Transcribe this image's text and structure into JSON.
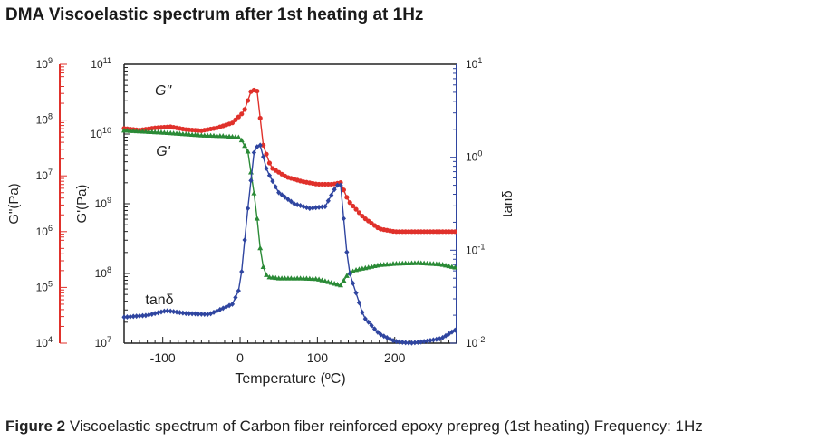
{
  "title": "DMA Viscoelastic spectrum after 1st heating at 1Hz",
  "caption": {
    "label": "Figure 2",
    "text": "Viscoelastic spectrum of Carbon fiber reinforced epoxy prepreg (1st heating) Frequency: 1Hz"
  },
  "colors": {
    "red": "#e0312b",
    "green": "#2a8a36",
    "blue": "#2f45a0",
    "axis_red": "#e0312b",
    "axis_blue": "#2f45a0"
  },
  "chart_data": {
    "type": "line",
    "title": "DMA Viscoelastic spectrum after 1st heating at 1Hz",
    "xlabel": "Temperature (ºC)",
    "xlim": [
      -150,
      280
    ],
    "x_ticks": [
      -100,
      0,
      100,
      200
    ],
    "x_tick_labels": [
      "-100",
      "0",
      "100",
      "200"
    ],
    "axes": {
      "g2": {
        "label": "G\"(Pa)",
        "scale": "log",
        "ylim": [
          4,
          9
        ],
        "ticks": [
          {
            "base": "10",
            "exp": "9"
          },
          {
            "base": "10",
            "exp": "8"
          },
          {
            "base": "10",
            "exp": "7"
          },
          {
            "base": "10",
            "exp": "6"
          },
          {
            "base": "10",
            "exp": "5"
          },
          {
            "base": "10",
            "exp": "4"
          }
        ]
      },
      "g1": {
        "label": "G'(Pa)",
        "scale": "log",
        "ylim": [
          7,
          11
        ],
        "ticks": [
          {
            "base": "10",
            "exp": "11"
          },
          {
            "base": "10",
            "exp": "10"
          },
          {
            "base": "10",
            "exp": "9"
          },
          {
            "base": "10",
            "exp": "8"
          },
          {
            "base": "10",
            "exp": "7"
          }
        ]
      },
      "tan": {
        "label": "tanδ",
        "scale": "log",
        "ylim": [
          -2,
          1
        ],
        "ticks": [
          {
            "base": "10",
            "exp": "1"
          },
          {
            "base": "10",
            "exp": "0"
          },
          {
            "base": "10",
            "exp": "-1"
          },
          {
            "base": "10",
            "exp": "-2"
          }
        ]
      }
    },
    "series": [
      {
        "name": "G\"",
        "label": "G\"",
        "axis": "g2",
        "color": "#e0312b",
        "marker": "circle",
        "points": [
          [
            -150,
            7.85
          ],
          [
            -130,
            7.82
          ],
          [
            -110,
            7.86
          ],
          [
            -90,
            7.88
          ],
          [
            -70,
            7.83
          ],
          [
            -50,
            7.81
          ],
          [
            -30,
            7.86
          ],
          [
            -10,
            7.95
          ],
          [
            5,
            8.15
          ],
          [
            15,
            8.55
          ],
          [
            22,
            8.52
          ],
          [
            30,
            7.55
          ],
          [
            40,
            7.15
          ],
          [
            60,
            6.98
          ],
          [
            80,
            6.9
          ],
          [
            100,
            6.85
          ],
          [
            120,
            6.85
          ],
          [
            130,
            6.88
          ],
          [
            140,
            6.55
          ],
          [
            160,
            6.25
          ],
          [
            180,
            6.05
          ],
          [
            200,
            6.0
          ],
          [
            220,
            6.0
          ],
          [
            250,
            6.0
          ],
          [
            280,
            6.0
          ]
        ]
      },
      {
        "name": "G'",
        "label": "G'",
        "axis": "g1",
        "color": "#2a8a36",
        "marker": "triangle",
        "points": [
          [
            -150,
            10.05
          ],
          [
            -100,
            10.02
          ],
          [
            -50,
            9.98
          ],
          [
            -20,
            9.97
          ],
          [
            0,
            9.95
          ],
          [
            10,
            9.75
          ],
          [
            20,
            9.0
          ],
          [
            28,
            8.15
          ],
          [
            35,
            7.95
          ],
          [
            50,
            7.93
          ],
          [
            80,
            7.93
          ],
          [
            100,
            7.92
          ],
          [
            120,
            7.86
          ],
          [
            130,
            7.83
          ],
          [
            140,
            8.0
          ],
          [
            150,
            8.05
          ],
          [
            180,
            8.12
          ],
          [
            200,
            8.14
          ],
          [
            230,
            8.15
          ],
          [
            260,
            8.13
          ],
          [
            280,
            8.08
          ]
        ]
      },
      {
        "name": "tanδ",
        "label": "tanδ",
        "axis": "tan",
        "color": "#2f45a0",
        "marker": "diamond",
        "points": [
          [
            -150,
            -1.72
          ],
          [
            -120,
            -1.7
          ],
          [
            -95,
            -1.65
          ],
          [
            -70,
            -1.68
          ],
          [
            -40,
            -1.69
          ],
          [
            -10,
            -1.58
          ],
          [
            0,
            -1.4
          ],
          [
            10,
            -0.55
          ],
          [
            18,
            0.05
          ],
          [
            25,
            0.16
          ],
          [
            35,
            -0.15
          ],
          [
            50,
            -0.38
          ],
          [
            70,
            -0.5
          ],
          [
            90,
            -0.55
          ],
          [
            110,
            -0.53
          ],
          [
            125,
            -0.3
          ],
          [
            130,
            -0.3
          ],
          [
            140,
            -1.2
          ],
          [
            160,
            -1.72
          ],
          [
            180,
            -1.9
          ],
          [
            200,
            -1.98
          ],
          [
            220,
            -2.0
          ],
          [
            240,
            -1.98
          ],
          [
            260,
            -1.95
          ],
          [
            280,
            -1.85
          ]
        ]
      }
    ]
  }
}
